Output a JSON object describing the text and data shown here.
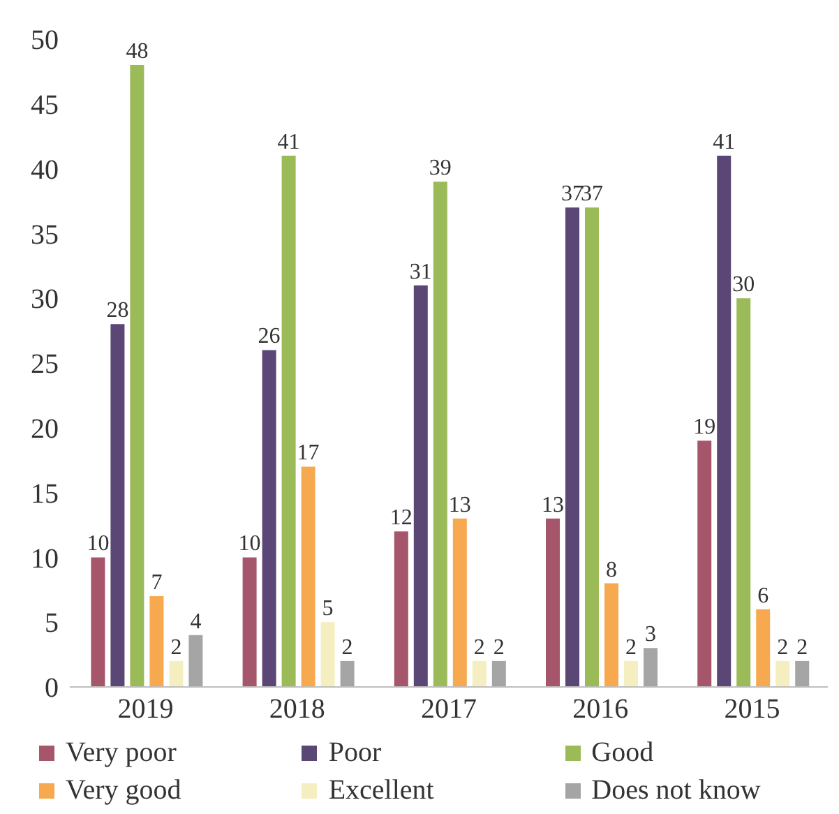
{
  "chart_data": {
    "type": "bar",
    "categories": [
      "2019",
      "2018",
      "2017",
      "2016",
      "2015"
    ],
    "series": [
      {
        "name": "Very poor",
        "color": "#a5566b",
        "values": [
          10,
          10,
          12,
          13,
          19
        ]
      },
      {
        "name": "Poor",
        "color": "#5b4775",
        "values": [
          28,
          26,
          31,
          37,
          41
        ]
      },
      {
        "name": "Good",
        "color": "#9bbb59",
        "values": [
          48,
          41,
          39,
          37,
          30
        ]
      },
      {
        "name": "Very good",
        "color": "#f6a94f",
        "values": [
          7,
          17,
          13,
          8,
          6
        ]
      },
      {
        "name": "Excellent",
        "color": "#f5eec0",
        "values": [
          2,
          5,
          2,
          2,
          2
        ]
      },
      {
        "name": "Does not know",
        "color": "#a5a5a5",
        "values": [
          4,
          2,
          2,
          3,
          2
        ]
      }
    ],
    "ylim": [
      0,
      50
    ],
    "yticks": [
      0,
      5,
      10,
      15,
      20,
      25,
      30,
      35,
      40,
      45,
      50
    ],
    "grid": false,
    "legend": "bottom",
    "data_labels": true
  }
}
